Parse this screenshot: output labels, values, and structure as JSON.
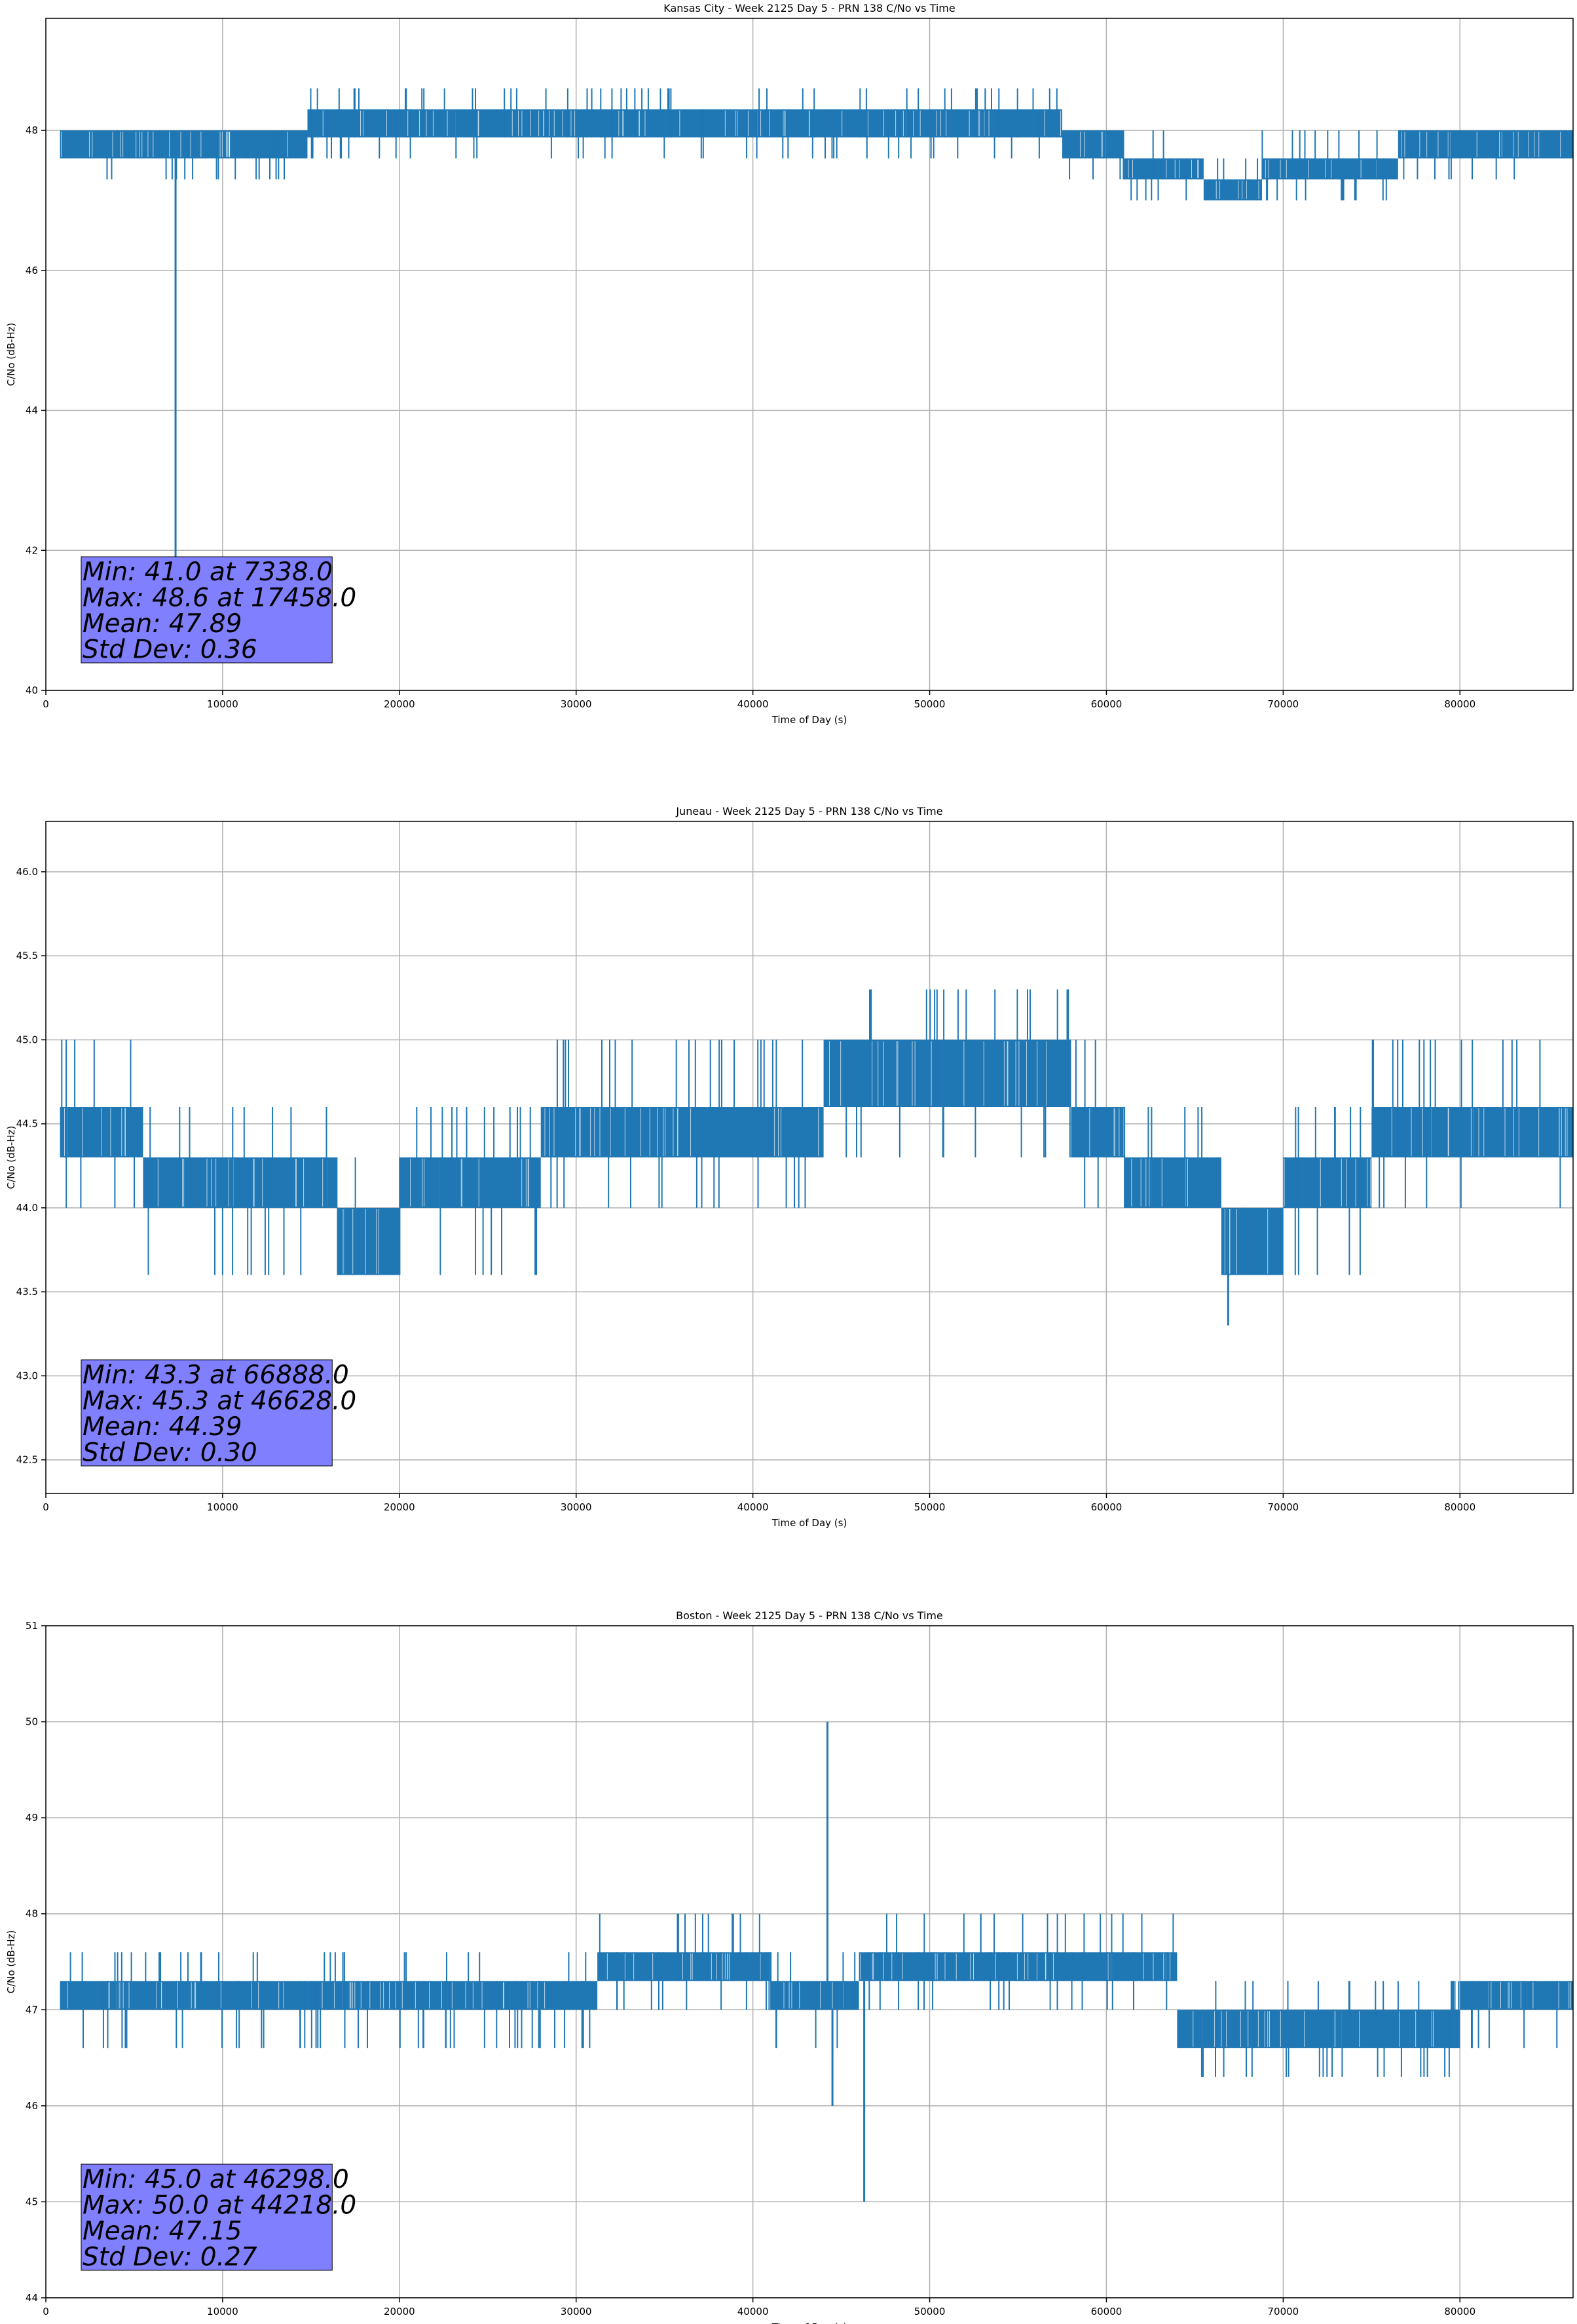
{
  "chart_data": [
    {
      "type": "line",
      "title": "Kansas City - Week 2125 Day 5 - PRN 138 C/No vs Time",
      "xlabel": "Time of Day (s)",
      "ylabel": "C/No (dB-Hz)",
      "xlim": [
        0,
        86400
      ],
      "ylim": [
        40,
        49.6
      ],
      "xticks": [
        0,
        10000,
        20000,
        30000,
        40000,
        50000,
        60000,
        70000,
        80000
      ],
      "yticks": [
        40,
        42,
        44,
        46,
        48
      ],
      "ytick_labels": [
        "40",
        "42",
        "44",
        "46",
        "48"
      ],
      "grid": true,
      "color": "#1f77b4",
      "stats_box": {
        "lines": [
          "Min: 41.0 at 7338.0",
          "Max: 48.6 at 17458.0",
          "Mean: 47.89",
          "Std Dev: 0.36"
        ],
        "facecolor": "#8080ff",
        "placement": "bottom-left"
      },
      "bands": [
        {
          "x": [
            800,
            14800
          ],
          "lo": 47.6,
          "hi": 48.0,
          "spike_lo": 47.3,
          "spike_hi": 48.0
        },
        {
          "x": [
            14800,
            57500
          ],
          "lo": 47.9,
          "hi": 48.3,
          "spike_lo": 47.6,
          "spike_hi": 48.6
        },
        {
          "x": [
            57500,
            61000
          ],
          "lo": 47.6,
          "hi": 48.0,
          "spike_lo": 47.3,
          "spike_hi": 48.0
        },
        {
          "x": [
            61000,
            65500
          ],
          "lo": 47.3,
          "hi": 47.6,
          "spike_lo": 47.0,
          "spike_hi": 48.0
        },
        {
          "x": [
            65500,
            68800
          ],
          "lo": 47.0,
          "hi": 47.3,
          "spike_lo": 47.0,
          "spike_hi": 47.6
        },
        {
          "x": [
            68800,
            76500
          ],
          "lo": 47.3,
          "hi": 47.6,
          "spike_lo": 47.0,
          "spike_hi": 48.0
        },
        {
          "x": [
            76500,
            86400
          ],
          "lo": 47.6,
          "hi": 48.0,
          "spike_lo": 47.3,
          "spike_hi": 48.0
        }
      ],
      "spikes": [
        {
          "x": 7338,
          "y": 41.0
        },
        {
          "x": 17458,
          "y": 48.6
        }
      ]
    },
    {
      "type": "line",
      "title": "Juneau - Week 2125 Day 5 - PRN 138 C/No vs Time",
      "xlabel": "Time of Day (s)",
      "ylabel": "C/No (dB-Hz)",
      "xlim": [
        0,
        86400
      ],
      "ylim": [
        42.3,
        46.3
      ],
      "xticks": [
        0,
        10000,
        20000,
        30000,
        40000,
        50000,
        60000,
        70000,
        80000
      ],
      "yticks": [
        42.5,
        43.0,
        43.5,
        44.0,
        44.5,
        45.0,
        45.5,
        46.0
      ],
      "ytick_labels": [
        "42.5",
        "43.0",
        "43.5",
        "44.0",
        "44.5",
        "45.0",
        "45.5",
        "46.0"
      ],
      "grid": true,
      "color": "#1f77b4",
      "stats_box": {
        "lines": [
          "Min: 43.3 at 66888.0",
          "Max: 45.3 at 46628.0",
          "Mean: 44.39",
          "Std Dev: 0.30"
        ],
        "facecolor": "#8080ff",
        "placement": "bottom-left"
      },
      "bands": [
        {
          "x": [
            800,
            5500
          ],
          "lo": 44.3,
          "hi": 44.6,
          "spike_lo": 44.0,
          "spike_hi": 45.0
        },
        {
          "x": [
            5500,
            16500
          ],
          "lo": 44.0,
          "hi": 44.3,
          "spike_lo": 43.6,
          "spike_hi": 44.6
        },
        {
          "x": [
            16500,
            20000
          ],
          "lo": 43.6,
          "hi": 44.0,
          "spike_lo": 43.6,
          "spike_hi": 44.3
        },
        {
          "x": [
            20000,
            28000
          ],
          "lo": 44.0,
          "hi": 44.3,
          "spike_lo": 43.6,
          "spike_hi": 44.6
        },
        {
          "x": [
            28000,
            44000
          ],
          "lo": 44.3,
          "hi": 44.6,
          "spike_lo": 44.0,
          "spike_hi": 45.0
        },
        {
          "x": [
            44000,
            58000
          ],
          "lo": 44.6,
          "hi": 45.0,
          "spike_lo": 44.3,
          "spike_hi": 45.3
        },
        {
          "x": [
            58000,
            61000
          ],
          "lo": 44.3,
          "hi": 44.6,
          "spike_lo": 44.0,
          "spike_hi": 45.0
        },
        {
          "x": [
            61000,
            66500
          ],
          "lo": 44.0,
          "hi": 44.3,
          "spike_lo": 44.0,
          "spike_hi": 44.6
        },
        {
          "x": [
            66500,
            70000
          ],
          "lo": 43.6,
          "hi": 44.0,
          "spike_lo": 43.6,
          "spike_hi": 44.0
        },
        {
          "x": [
            70000,
            75000
          ],
          "lo": 44.0,
          "hi": 44.3,
          "spike_lo": 43.6,
          "spike_hi": 44.6
        },
        {
          "x": [
            75000,
            86400
          ],
          "lo": 44.3,
          "hi": 44.6,
          "spike_lo": 44.0,
          "spike_hi": 45.0
        }
      ],
      "spikes": [
        {
          "x": 66888,
          "y": 43.3
        },
        {
          "x": 46628,
          "y": 45.3
        }
      ]
    },
    {
      "type": "line",
      "title": "Boston - Week 2125 Day 5 - PRN 138 C/No vs Time",
      "xlabel": "Time of Day (s)",
      "ylabel": "C/No (dB-Hz)",
      "xlim": [
        0,
        86400
      ],
      "ylim": [
        44,
        51
      ],
      "xticks": [
        0,
        10000,
        20000,
        30000,
        40000,
        50000,
        60000,
        70000,
        80000
      ],
      "yticks": [
        44,
        45,
        46,
        47,
        48,
        49,
        50,
        51
      ],
      "ytick_labels": [
        "44",
        "45",
        "46",
        "47",
        "48",
        "49",
        "50",
        "51"
      ],
      "grid": true,
      "color": "#1f77b4",
      "stats_box": {
        "lines": [
          "Min: 45.0 at 46298.0",
          "Max: 50.0 at 44218.0",
          "Mean: 47.15",
          "Std Dev: 0.27"
        ],
        "facecolor": "#8080ff",
        "placement": "bottom-left"
      },
      "bands": [
        {
          "x": [
            800,
            31200
          ],
          "lo": 47.0,
          "hi": 47.3,
          "spike_lo": 46.6,
          "spike_hi": 47.6
        },
        {
          "x": [
            31200,
            41000
          ],
          "lo": 47.3,
          "hi": 47.6,
          "spike_lo": 47.0,
          "spike_hi": 48.0
        },
        {
          "x": [
            41000,
            46000
          ],
          "lo": 47.0,
          "hi": 47.3,
          "spike_lo": 46.6,
          "spike_hi": 47.6
        },
        {
          "x": [
            46000,
            64000
          ],
          "lo": 47.3,
          "hi": 47.6,
          "spike_lo": 47.0,
          "spike_hi": 48.0
        },
        {
          "x": [
            64000,
            80000
          ],
          "lo": 46.6,
          "hi": 47.0,
          "spike_lo": 46.3,
          "spike_hi": 47.3
        },
        {
          "x": [
            80000,
            86400
          ],
          "lo": 47.0,
          "hi": 47.3,
          "spike_lo": 46.6,
          "spike_hi": 47.3
        }
      ],
      "spikes": [
        {
          "x": 44218,
          "y": 50.0
        },
        {
          "x": 44500,
          "y": 46.0
        },
        {
          "x": 46298,
          "y": 45.0
        }
      ]
    }
  ]
}
